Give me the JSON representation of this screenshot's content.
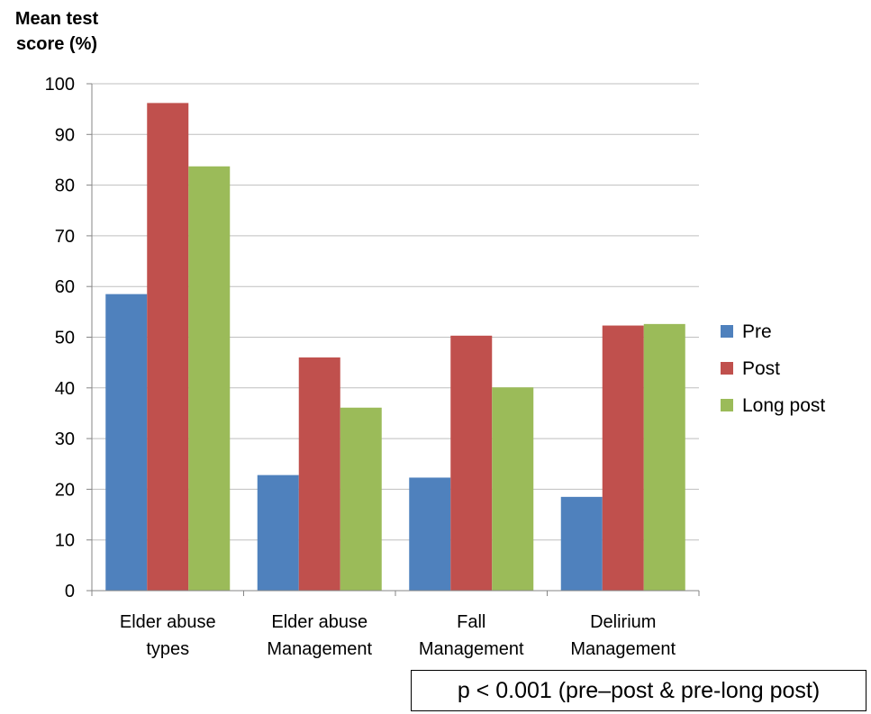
{
  "chart_data": {
    "type": "bar",
    "ylabel_lines": [
      "Mean test",
      "score (%)"
    ],
    "xlabel": "",
    "ylim": [
      0,
      100
    ],
    "yticks": [
      0,
      10,
      20,
      30,
      40,
      50,
      60,
      70,
      80,
      90,
      100
    ],
    "grid": true,
    "legend_position": "right",
    "categories": [
      [
        "Elder abuse",
        "types"
      ],
      [
        "Elder abuse",
        "Management"
      ],
      [
        "Fall",
        "Management"
      ],
      [
        "Delirium",
        "Management"
      ]
    ],
    "series": [
      {
        "name": "Pre",
        "color": "#4f81bd",
        "values": [
          58.5,
          22.8,
          22.3,
          18.5
        ]
      },
      {
        "name": "Post",
        "color": "#c0504d",
        "values": [
          96.2,
          46.0,
          50.3,
          52.3
        ]
      },
      {
        "name": "Long post",
        "color": "#9bbb59",
        "values": [
          83.7,
          36.1,
          40.1,
          52.6
        ]
      }
    ],
    "annotation": "p < 0.001 (pre–post & pre-long post)"
  }
}
